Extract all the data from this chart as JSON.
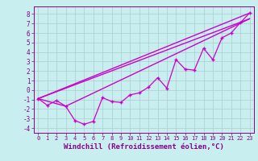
{
  "xlabel": "Windchill (Refroidissement éolien,°C)",
  "bg_color": "#c8eef0",
  "line_color": "#cc00cc",
  "grid_color": "#aacccc",
  "xlim": [
    -0.5,
    23.5
  ],
  "ylim": [
    -4.5,
    8.8
  ],
  "yticks": [
    -4,
    -3,
    -2,
    -1,
    0,
    1,
    2,
    3,
    4,
    5,
    6,
    7,
    8
  ],
  "xticks": [
    0,
    1,
    2,
    3,
    4,
    5,
    6,
    7,
    8,
    9,
    10,
    11,
    12,
    13,
    14,
    15,
    16,
    17,
    18,
    19,
    20,
    21,
    22,
    23
  ],
  "line1_x": [
    0,
    23
  ],
  "line1_y": [
    -0.9,
    8.1
  ],
  "line2_x": [
    0,
    23
  ],
  "line2_y": [
    -0.9,
    7.5
  ],
  "line3_x": [
    0,
    3,
    23
  ],
  "line3_y": [
    -0.9,
    -1.7,
    7.5
  ],
  "zigzag_x": [
    0,
    1,
    2,
    3,
    4,
    5,
    6,
    7,
    8,
    9,
    10,
    11,
    12,
    13,
    14,
    15,
    16,
    17,
    18,
    19,
    20,
    21,
    22,
    23
  ],
  "zigzag_y": [
    -0.9,
    -1.6,
    -1.1,
    -1.7,
    -3.2,
    -3.6,
    -3.3,
    -0.8,
    -1.2,
    -1.3,
    -0.5,
    -0.3,
    0.3,
    1.3,
    0.2,
    3.2,
    2.2,
    2.1,
    4.4,
    3.2,
    5.5,
    6.0,
    7.1,
    8.1
  ]
}
